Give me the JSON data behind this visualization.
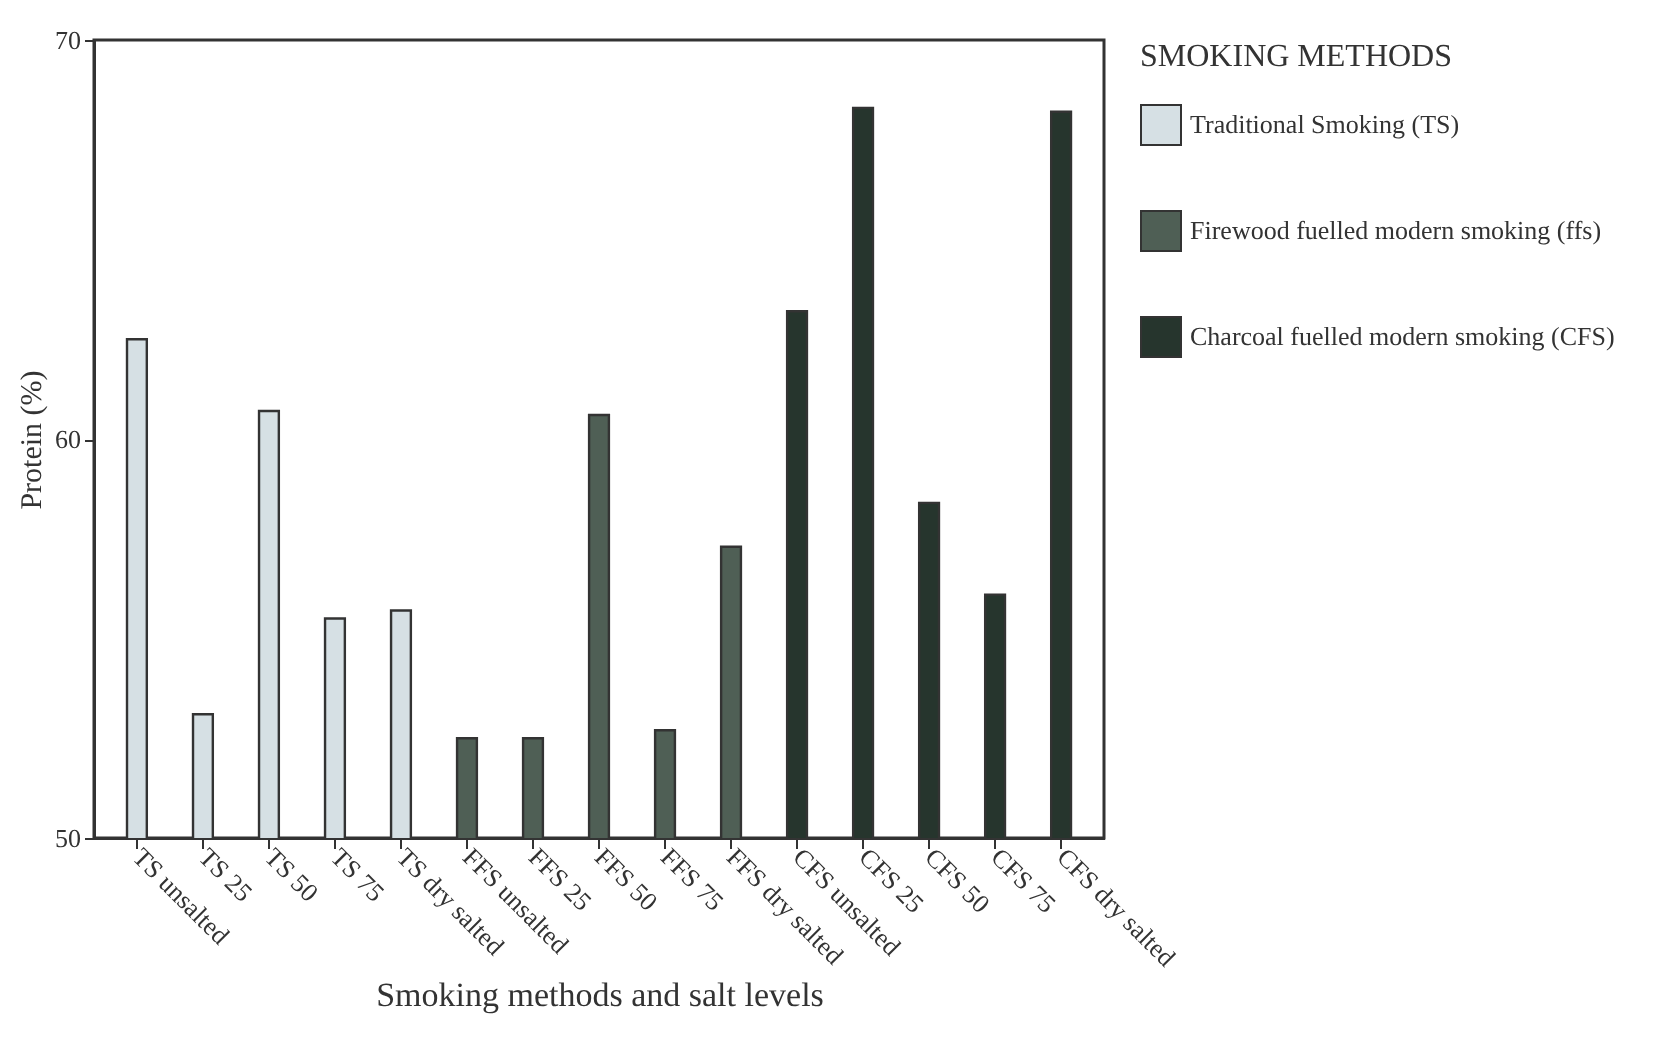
{
  "chart_data": {
    "type": "bar",
    "xlabel": "Smoking methods and salt levels",
    "ylabel": "Protein (%)",
    "legend_title": "SMOKING METHODS",
    "categories": [
      "TS unsalted",
      "TS 25",
      "TS 50",
      "TS 75",
      "TS dry salted",
      "FFS unsalted",
      "FFS 25",
      "FFS 50",
      "FFS 75",
      "FFS dry salted",
      "CFS unsalted",
      "CFS 25",
      "CFS 50",
      "CFS 75",
      "CFS dry salted"
    ],
    "series": [
      {
        "name": "Traditional Smoking (TS)",
        "color": "#d6e0e4",
        "values": [
          62.5,
          53.1,
          60.7,
          55.5,
          55.7,
          null,
          null,
          null,
          null,
          null,
          null,
          null,
          null,
          null,
          null
        ]
      },
      {
        "name": "Firewood fuelled modern smoking (ffs)",
        "color": "#4f5f55",
        "values": [
          null,
          null,
          null,
          null,
          null,
          52.5,
          52.5,
          60.6,
          52.7,
          57.3,
          null,
          null,
          null,
          null,
          null
        ]
      },
      {
        "name": "Charcoal fuelled modern smoking (CFS)",
        "color": "#26352d",
        "values": [
          null,
          null,
          null,
          null,
          null,
          null,
          null,
          null,
          null,
          null,
          63.2,
          68.3,
          58.4,
          56.1,
          68.2
        ]
      }
    ],
    "ylim": [
      50,
      70
    ],
    "yticks": [
      50,
      60,
      70
    ],
    "grid": false,
    "legend": "right"
  }
}
